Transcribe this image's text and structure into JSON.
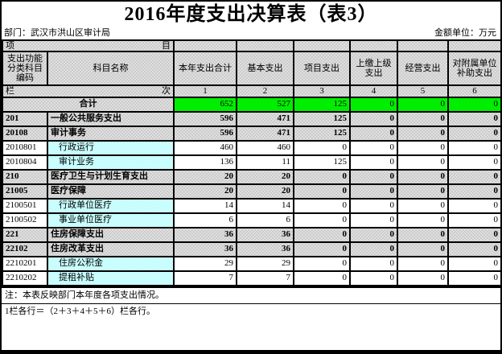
{
  "page": {
    "title": "2016年度支出决算表（表3）",
    "department": "部门：武汉市洪山区审计局",
    "unit_note": "金额单位：万元"
  },
  "table": {
    "corner": {
      "top_left": "项",
      "top_right": "目",
      "row_label_left": "栏",
      "row_label_right": "次"
    },
    "code_header": "支出功能分类科目编码",
    "name_header": "科目名称",
    "amount_headers": [
      "本年支出合计",
      "基本支出",
      "项目支出",
      "上缴上级支出",
      "经营支出",
      "对附属单位补助支出"
    ],
    "column_numbers": [
      "1",
      "2",
      "3",
      "4",
      "5",
      "6"
    ],
    "total_row": {
      "label": "合计",
      "values": [
        "652",
        "527",
        "125",
        "0",
        "0",
        "0"
      ]
    },
    "rows": [
      {
        "code": "201",
        "name": "一般公共服务支出",
        "level": "major",
        "values": [
          "596",
          "471",
          "125",
          "0",
          "0",
          "0"
        ]
      },
      {
        "code": "20108",
        "name": "审计事务",
        "level": "major",
        "values": [
          "596",
          "471",
          "125",
          "0",
          "0",
          "0"
        ]
      },
      {
        "code": "2010801",
        "name": "行政运行",
        "level": "detail",
        "values": [
          "460",
          "460",
          "0",
          "0",
          "0",
          "0"
        ]
      },
      {
        "code": "2010804",
        "name": "审计业务",
        "level": "detail",
        "values": [
          "136",
          "11",
          "125",
          "0",
          "0",
          "0"
        ]
      },
      {
        "code": "210",
        "name": "医疗卫生与计划生育支出",
        "level": "major",
        "values": [
          "20",
          "20",
          "0",
          "0",
          "0",
          "0"
        ]
      },
      {
        "code": "21005",
        "name": "医疗保障",
        "level": "major",
        "values": [
          "20",
          "20",
          "0",
          "0",
          "0",
          "0"
        ]
      },
      {
        "code": "2100501",
        "name": "行政单位医疗",
        "level": "detail",
        "values": [
          "14",
          "14",
          "0",
          "0",
          "0",
          "0"
        ]
      },
      {
        "code": "2100502",
        "name": "事业单位医疗",
        "level": "detail",
        "values": [
          "6",
          "6",
          "0",
          "0",
          "0",
          "0"
        ]
      },
      {
        "code": "221",
        "name": "住房保障支出",
        "level": "major",
        "values": [
          "36",
          "36",
          "0",
          "0",
          "0",
          "0"
        ]
      },
      {
        "code": "22102",
        "name": "住房改革支出",
        "level": "major",
        "values": [
          "36",
          "36",
          "0",
          "0",
          "0",
          "0"
        ]
      },
      {
        "code": "2210201",
        "name": "住房公积金",
        "level": "detail",
        "values": [
          "29",
          "29",
          "0",
          "0",
          "0",
          "0"
        ]
      },
      {
        "code": "2210202",
        "name": "提租补贴",
        "level": "detail",
        "values": [
          "7",
          "7",
          "0",
          "0",
          "0",
          "0"
        ]
      }
    ]
  },
  "notes": [
    "注：本表反映部门本年度各项支出情况。",
    "1栏各行＝（2＋3＋4＋5＋6）栏各行。"
  ],
  "colors": {
    "total_highlight": "#00ee00",
    "header_gray": "#dfdfdf",
    "detail_name_cyan": "#ccffff"
  }
}
